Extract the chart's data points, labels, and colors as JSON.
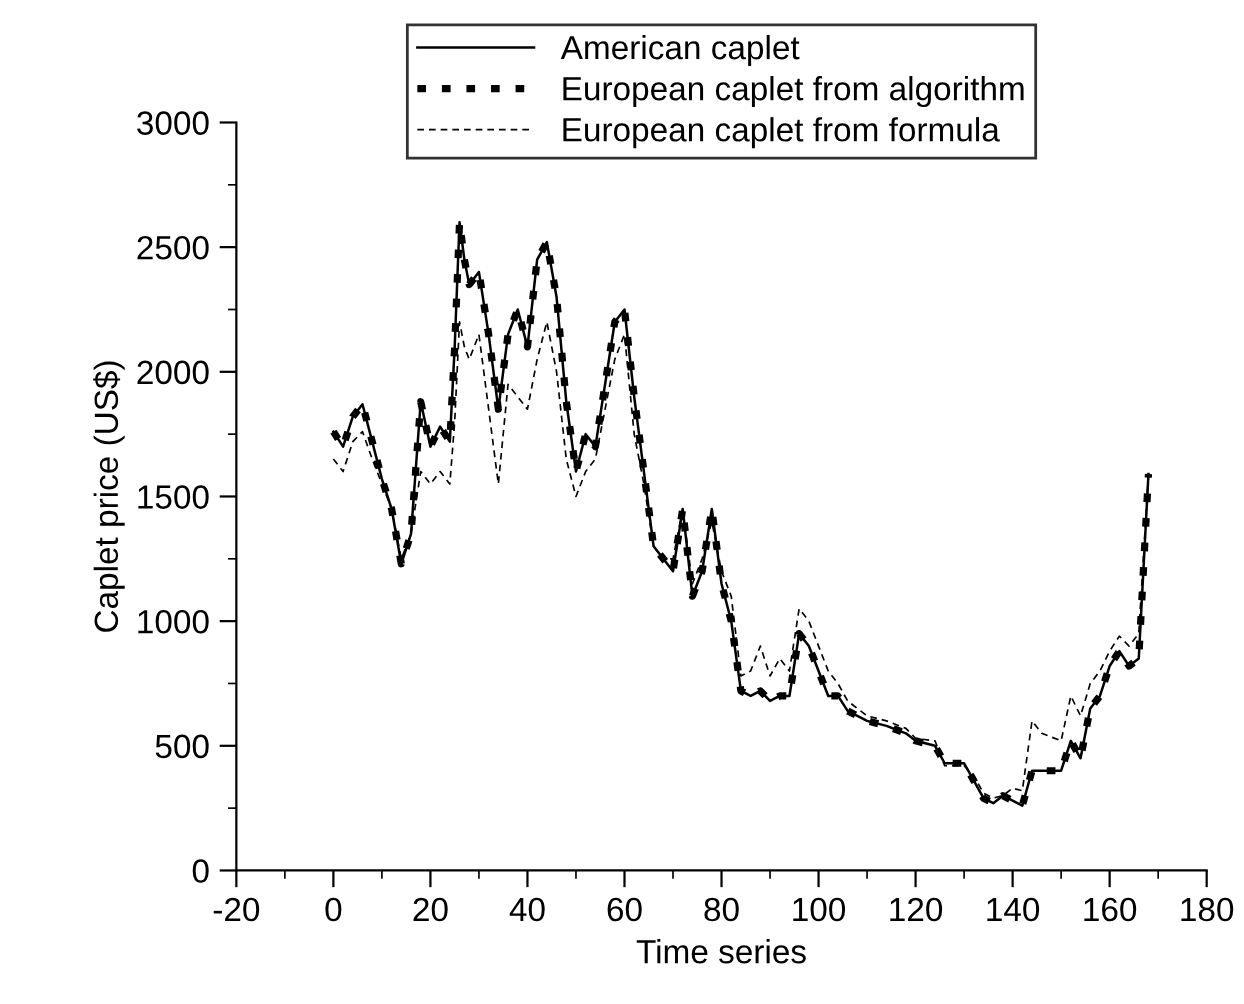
{
  "chart_data": {
    "type": "line",
    "xlabel": "Time series",
    "ylabel": "Caplet price (US$)",
    "xlim": [
      -20,
      180
    ],
    "xticks": [
      -20,
      0,
      20,
      40,
      60,
      80,
      100,
      120,
      140,
      160,
      180
    ],
    "ylim": [
      0,
      3000
    ],
    "yticks": [
      0,
      500,
      1000,
      1500,
      2000,
      2500,
      3000
    ],
    "grid": false,
    "legend": "top",
    "marker": "none",
    "x": [
      0,
      2,
      4,
      6,
      8,
      10,
      12,
      14,
      16,
      18,
      20,
      22,
      24,
      25,
      26,
      27,
      28,
      30,
      32,
      34,
      36,
      38,
      40,
      42,
      44,
      46,
      48,
      50,
      52,
      54,
      56,
      58,
      60,
      62,
      64,
      66,
      68,
      70,
      72,
      74,
      76,
      78,
      80,
      82,
      84,
      86,
      88,
      90,
      92,
      94,
      96,
      98,
      100,
      102,
      104,
      106,
      110,
      114,
      118,
      120,
      124,
      126,
      130,
      132,
      134,
      136,
      138,
      140,
      142,
      144,
      146,
      150,
      152,
      154,
      156,
      158,
      160,
      162,
      164,
      166,
      168
    ],
    "series": [
      {
        "name": "American caplet",
        "color": "#000000",
        "line_style": "solid",
        "values": [
          1760,
          1700,
          1820,
          1870,
          1720,
          1570,
          1450,
          1230,
          1350,
          1880,
          1700,
          1780,
          1720,
          2100,
          2600,
          2450,
          2350,
          2400,
          2150,
          1850,
          2150,
          2250,
          2100,
          2450,
          2520,
          2300,
          1880,
          1600,
          1750,
          1700,
          1950,
          2200,
          2250,
          1900,
          1600,
          1300,
          1250,
          1200,
          1450,
          1100,
          1200,
          1450,
          1150,
          1000,
          720,
          700,
          720,
          680,
          700,
          700,
          950,
          900,
          800,
          700,
          700,
          640,
          600,
          580,
          550,
          520,
          500,
          430,
          430,
          360,
          290,
          270,
          300,
          280,
          260,
          400,
          400,
          400,
          520,
          450,
          650,
          700,
          820,
          880,
          820,
          850,
          1590
        ]
      },
      {
        "name": "European caplet from algorithm",
        "color": "#000000",
        "line_style": "dotted",
        "values": [
          1760,
          1700,
          1820,
          1870,
          1720,
          1570,
          1450,
          1230,
          1350,
          1880,
          1700,
          1780,
          1720,
          2100,
          2600,
          2450,
          2350,
          2400,
          2150,
          1850,
          2150,
          2250,
          2100,
          2450,
          2520,
          2300,
          1880,
          1600,
          1750,
          1700,
          1950,
          2200,
          2250,
          1900,
          1600,
          1300,
          1250,
          1200,
          1450,
          1100,
          1200,
          1450,
          1150,
          1000,
          720,
          700,
          720,
          680,
          700,
          700,
          950,
          900,
          800,
          700,
          700,
          640,
          600,
          580,
          550,
          520,
          500,
          430,
          430,
          360,
          290,
          270,
          300,
          280,
          260,
          400,
          400,
          400,
          520,
          450,
          650,
          700,
          820,
          880,
          820,
          850,
          1590
        ]
      },
      {
        "name": "European caplet from formula",
        "color": "#000000",
        "line_style": "dashed",
        "values": [
          1650,
          1600,
          1720,
          1760,
          1650,
          1550,
          1450,
          1250,
          1350,
          1600,
          1550,
          1600,
          1550,
          1800,
          2200,
          2100,
          2050,
          2150,
          1850,
          1550,
          1950,
          1900,
          1850,
          2050,
          2200,
          2000,
          1650,
          1500,
          1600,
          1650,
          1850,
          2050,
          2150,
          1750,
          1550,
          1300,
          1250,
          1250,
          1450,
          1150,
          1250,
          1400,
          1200,
          1100,
          780,
          800,
          900,
          780,
          850,
          800,
          1050,
          1000,
          900,
          800,
          750,
          680,
          620,
          600,
          570,
          530,
          520,
          420,
          420,
          380,
          310,
          290,
          300,
          330,
          320,
          600,
          550,
          520,
          700,
          620,
          750,
          800,
          880,
          940,
          900,
          950,
          1590
        ]
      }
    ]
  }
}
